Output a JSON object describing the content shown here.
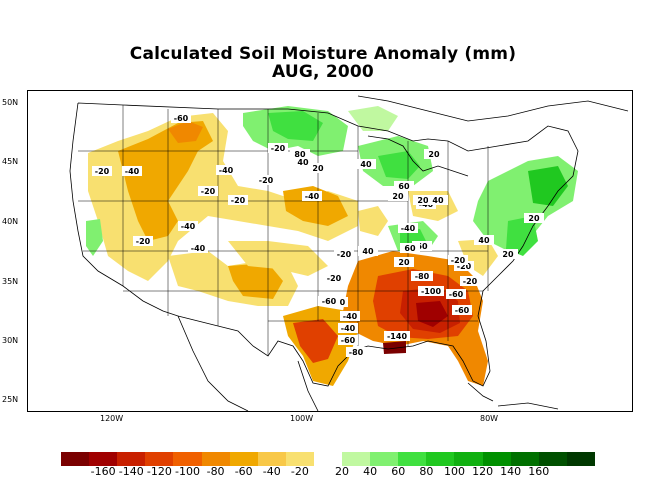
{
  "title": {
    "line1": "Calculated Soil Moisture Anomaly (mm)",
    "line2": "AUG, 2000"
  },
  "lat_labels": [
    "50N",
    "45N",
    "40N",
    "35N",
    "30N",
    "25N"
  ],
  "lon_labels": [
    "120W",
    "100W",
    "80W"
  ],
  "colorbar": {
    "colors": [
      "#7a0000",
      "#a00000",
      "#c82000",
      "#e04000",
      "#f06000",
      "#f08800",
      "#f0a800",
      "#f8c848",
      "#f8e070",
      "#ffffff",
      "#c0f8a0",
      "#80f070",
      "#40e040",
      "#20c820",
      "#10b010",
      "#009000",
      "#007000",
      "#005000",
      "#003800"
    ],
    "tick_labels": [
      "-160",
      "-140",
      "-120",
      "-100",
      "-80",
      "-60",
      "-40",
      "-20",
      "20",
      "40",
      "60",
      "80",
      "100",
      "120",
      "140",
      "160"
    ]
  },
  "contour_labels": [
    {
      "text": "-60"
    },
    {
      "text": "-20"
    },
    {
      "text": "-40"
    },
    {
      "text": "-40"
    },
    {
      "text": "-20"
    },
    {
      "text": "-20"
    },
    {
      "text": "-20"
    },
    {
      "text": "-40"
    },
    {
      "text": "-40"
    },
    {
      "text": "-20"
    },
    {
      "text": "-40"
    },
    {
      "text": "-20"
    },
    {
      "text": "-40"
    },
    {
      "text": "-20"
    },
    {
      "text": "-40"
    },
    {
      "text": "-20"
    },
    {
      "text": "-60"
    },
    {
      "text": "-40"
    },
    {
      "text": "-20"
    },
    {
      "text": "-80"
    },
    {
      "text": "-40"
    },
    {
      "text": "-60"
    },
    {
      "text": "-80"
    },
    {
      "text": "-100"
    },
    {
      "text": "-60"
    },
    {
      "text": "-60"
    },
    {
      "text": "-140"
    },
    {
      "text": "-20"
    },
    {
      "text": "-20"
    },
    {
      "text": "-20"
    },
    {
      "text": "80"
    },
    {
      "text": "40"
    },
    {
      "text": "20"
    },
    {
      "text": "40"
    },
    {
      "text": "60"
    },
    {
      "text": "20"
    },
    {
      "text": "40"
    },
    {
      "text": "20"
    },
    {
      "text": "60"
    },
    {
      "text": "40"
    },
    {
      "text": "20"
    },
    {
      "text": "40"
    },
    {
      "text": "20"
    },
    {
      "text": "20"
    },
    {
      "text": "60"
    },
    {
      "text": "20"
    }
  ]
}
